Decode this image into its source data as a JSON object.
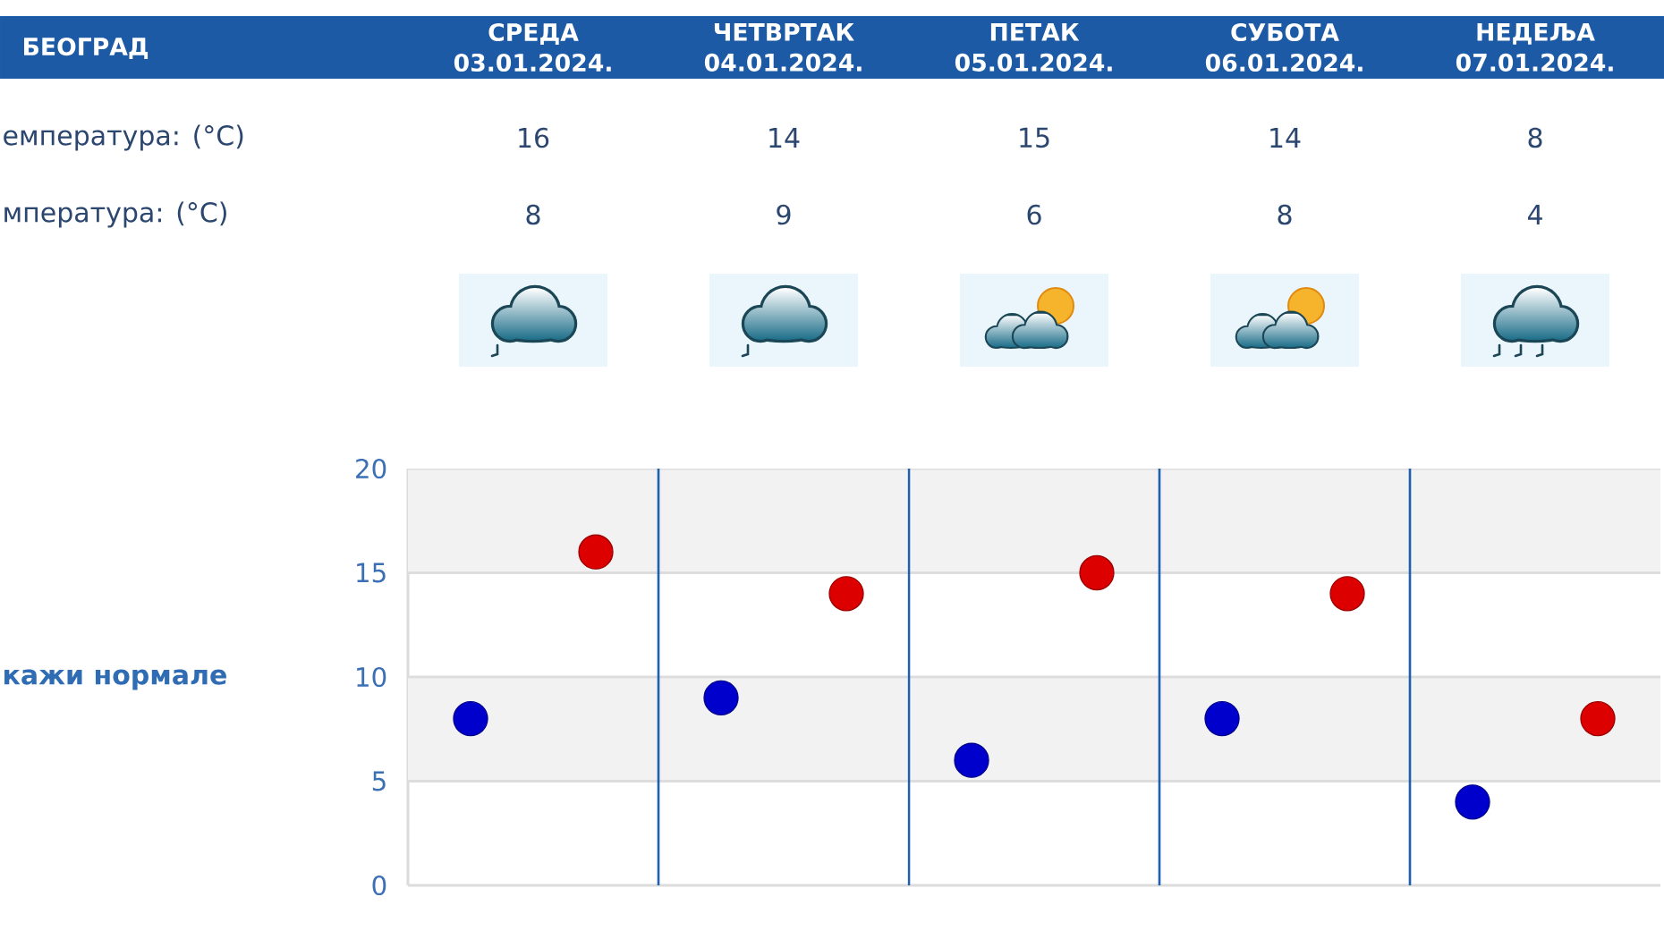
{
  "chart_data": {
    "type": "scatter",
    "title": "БЕОГРАД",
    "categories": [
      null,
      null,
      null,
      null,
      null
    ],
    "series": [
      {
        "color": "#dd0000",
        "values": [
          16,
          14,
          15,
          14,
          8
        ]
      },
      {
        "color": "#0000cc",
        "values": [
          8,
          9,
          6,
          8,
          4
        ]
      }
    ],
    "ylim": [
      0,
      20
    ],
    "yticks": [
      0,
      5,
      10,
      15,
      20
    ],
    "grid": true,
    "marker": "circle",
    "data_labels": true,
    "bands": [
      {
        "axis": "y",
        "from": 5,
        "to": 10,
        "color": "#f2f2f2"
      },
      {
        "axis": "y",
        "from": 15,
        "to": 20,
        "color": "#f2f2f2"
      }
    ],
    "annotations": [
      "СРЕДА 03.01.2024.",
      "ЧЕТВРТАК 04.01.2024.",
      "ПЕТАК 05.01.2024.",
      "СУБОТА 06.01.2024.",
      "НЕДЕЉА 07.01.2024.",
      "емпература: (°C)",
      "мпература: (°C)",
      "кажи нормале"
    ]
  }
}
